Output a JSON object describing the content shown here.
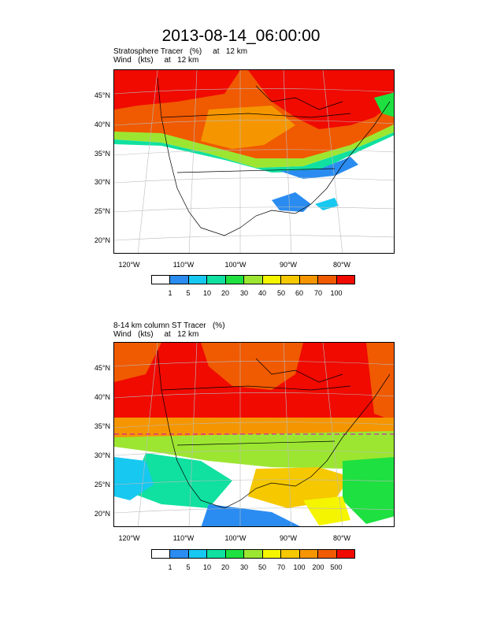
{
  "title": "2013-08-14_06:00:00",
  "panels": [
    {
      "title_line1": "Stratosphere Tracer   (%)     at   12 km",
      "title_line2": "Wind   (kts)     at   12 km",
      "lat_labels": [
        "45°N",
        "40°N",
        "35°N",
        "30°N",
        "25°N",
        "20°N"
      ],
      "lon_labels": [
        "120°W",
        "110°W",
        "100°W",
        "90°W",
        "80°W"
      ],
      "colorbar_labels": [
        "1",
        "5",
        "10",
        "20",
        "30",
        "40",
        "50",
        "60",
        "70",
        "100"
      ]
    },
    {
      "title_line1": "8-14 km column ST Tracer   (%)",
      "title_line2": "Wind   (kts)     at   12 km",
      "lat_labels": [
        "45°N",
        "40°N",
        "35°N",
        "30°N",
        "25°N",
        "20°N"
      ],
      "lon_labels": [
        "120°W",
        "110°W",
        "100°W",
        "90°W",
        "80°W"
      ],
      "colorbar_labels": [
        "1",
        "5",
        "10",
        "20",
        "30",
        "50",
        "70",
        "100",
        "200",
        "500"
      ]
    }
  ],
  "colorbar_colors": [
    "#ffffff",
    "#2a8cf0",
    "#17c8f0",
    "#10e0a0",
    "#1ee040",
    "#9ce632",
    "#f5f500",
    "#f5c800",
    "#f59600",
    "#f05a00",
    "#f00a00"
  ]
}
